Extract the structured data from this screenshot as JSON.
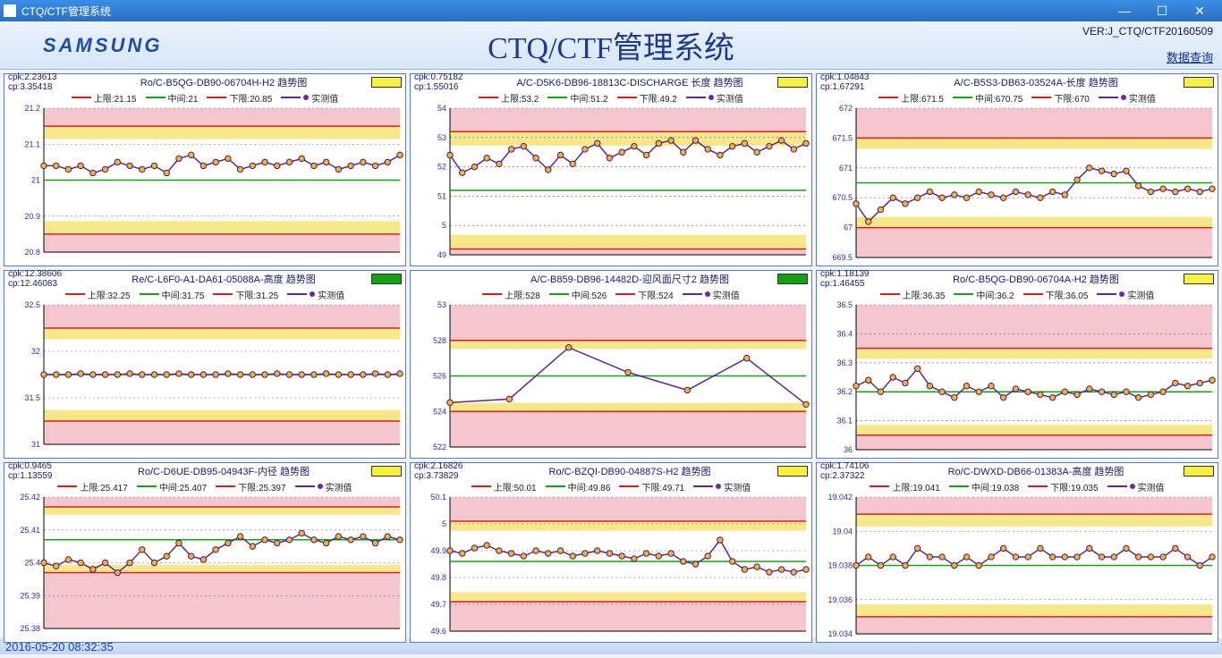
{
  "window": {
    "title": "CTQ/CTF管理系统"
  },
  "header": {
    "logo_text": "SAMSUNG",
    "main_title": "CTQ/CTF管理系统",
    "version": "VER:J_CTQ/CTF20160509",
    "query_link": "数据查询"
  },
  "footer": {
    "timestamp": "2016-05-20 08:32:35"
  },
  "legend_labels": {
    "upper": "上限:",
    "mid": "中间:",
    "lower": "下限:",
    "actual": "实测值"
  },
  "colors": {
    "upper_line": "#d62020",
    "mid_line": "#18a018",
    "lower_line": "#d62020",
    "actual_line": "#5a2a8a",
    "marker_fill": "#f0b830",
    "marker_stroke": "#4a187a",
    "band_outer": "#f6c6cf",
    "band_inner": "#f6e88a",
    "grid": "#5a5ad0",
    "axis": "#000000",
    "status_yellow": "#f8f040",
    "status_green": "#10a010",
    "panel_border": "#5a7db3"
  },
  "charts": [
    {
      "cpk": "2.23613",
      "cp": "3.35418",
      "title": "Ro/C-B5QG-DB90-06704H-H2  趋势图",
      "status": "yellow",
      "upper": 21.15,
      "mid": 21,
      "lower": 20.85,
      "ymin": 20.8,
      "ymax": 21.2,
      "ystep": 0.1,
      "values": [
        21.04,
        21.04,
        21.03,
        21.04,
        21.02,
        21.03,
        21.05,
        21.04,
        21.03,
        21.04,
        21.02,
        21.06,
        21.07,
        21.04,
        21.05,
        21.06,
        21.03,
        21.04,
        21.05,
        21.04,
        21.05,
        21.06,
        21.04,
        21.05,
        21.03,
        21.04,
        21.05,
        21.04,
        21.05,
        21.07
      ]
    },
    {
      "cpk": "0.75182",
      "cp": "1.55016",
      "title": "A/C-D5K6-DB96-18813C-DISCHARGE 长度  趋势图",
      "status": "yellow",
      "upper": 53.2,
      "mid": 51.2,
      "lower": 49.2,
      "ymin": 49,
      "ymax": 54,
      "ystep": 1,
      "values": [
        52.4,
        51.8,
        52.0,
        52.3,
        52.1,
        52.6,
        52.7,
        52.3,
        51.9,
        52.4,
        52.1,
        52.6,
        52.8,
        52.3,
        52.5,
        52.7,
        52.4,
        52.8,
        52.9,
        52.5,
        52.9,
        52.6,
        52.4,
        52.7,
        52.8,
        52.5,
        52.7,
        52.9,
        52.6,
        52.8
      ]
    },
    {
      "cpk": "1.04843",
      "cp": "1.67291",
      "title": "A/C-B5S3-DB63-03524A-长度  趋势图",
      "status": "yellow",
      "upper": 671.5,
      "mid": 670.75,
      "lower": 670,
      "ymin": 669.5,
      "ymax": 672,
      "ystep": 0.5,
      "values": [
        670.4,
        670.1,
        670.3,
        670.5,
        670.4,
        670.5,
        670.6,
        670.5,
        670.55,
        670.5,
        670.6,
        670.55,
        670.5,
        670.6,
        670.55,
        670.5,
        670.6,
        670.55,
        670.8,
        671.0,
        670.95,
        670.9,
        670.95,
        670.7,
        670.6,
        670.65,
        670.6,
        670.65,
        670.6,
        670.65
      ]
    },
    {
      "cpk": "12.38606",
      "cp": "12.46083",
      "title": "Re/C-L6F0-A1-DA61-05088A-高度  趋势图",
      "status": "green",
      "upper": 32.25,
      "mid": 31.75,
      "lower": 31.25,
      "ymin": 31,
      "ymax": 32.5,
      "ystep": 0.5,
      "values": [
        31.75,
        31.75,
        31.75,
        31.76,
        31.75,
        31.75,
        31.75,
        31.76,
        31.75,
        31.75,
        31.75,
        31.76,
        31.75,
        31.75,
        31.75,
        31.76,
        31.75,
        31.75,
        31.75,
        31.76,
        31.75,
        31.75,
        31.75,
        31.76,
        31.75,
        31.75,
        31.75,
        31.76,
        31.75,
        31.76
      ]
    },
    {
      "cpk": "",
      "cp": "",
      "title": "A/C-B859-DB96-14482D-迎风面尺寸2  趋势图",
      "status": "green",
      "upper": 528,
      "mid": 526,
      "lower": 524,
      "ymin": 522,
      "ymax": 530,
      "ystep": 2,
      "values": [
        524.5,
        524.7,
        527.6,
        526.2,
        525.2,
        527.0,
        524.4
      ]
    },
    {
      "cpk": "1.18139",
      "cp": "1.46455",
      "title": "Ro/C-B5QG-DB90-06704A-H2  趋势图",
      "status": "yellow",
      "upper": 36.35,
      "mid": 36.2,
      "lower": 36.05,
      "ymin": 36,
      "ymax": 36.5,
      "ystep": 0.1,
      "values": [
        36.22,
        36.24,
        36.2,
        36.25,
        36.23,
        36.28,
        36.22,
        36.2,
        36.18,
        36.22,
        36.2,
        36.22,
        36.18,
        36.21,
        36.2,
        36.19,
        36.18,
        36.2,
        36.19,
        36.21,
        36.2,
        36.19,
        36.2,
        36.18,
        36.19,
        36.2,
        36.23,
        36.22,
        36.23,
        36.24
      ]
    },
    {
      "cpk": "0.9465",
      "cp": "1.13559",
      "title": "Ro/C-D6UE-DB95-04943F-内径  趋势图",
      "status": "yellow",
      "upper": 25.417,
      "mid": 25.407,
      "lower": 25.397,
      "ymin": 25.38,
      "ymax": 25.42,
      "ystep": 0.01,
      "values": [
        25.4,
        25.399,
        25.401,
        25.4,
        25.398,
        25.4,
        25.397,
        25.4,
        25.404,
        25.4,
        25.402,
        25.406,
        25.402,
        25.401,
        25.404,
        25.406,
        25.408,
        25.405,
        25.407,
        25.406,
        25.407,
        25.409,
        25.407,
        25.406,
        25.408,
        25.407,
        25.408,
        25.406,
        25.408,
        25.407
      ]
    },
    {
      "cpk": "2.16826",
      "cp": "3.73829",
      "title": "Ro/C-BZQI-DB90-04887S-H2  趋势图",
      "status": "yellow",
      "upper": 50.01,
      "mid": 49.86,
      "lower": 49.71,
      "ymin": 49.6,
      "ymax": 50.1,
      "ystep": 0.1,
      "values": [
        49.9,
        49.89,
        49.91,
        49.92,
        49.9,
        49.89,
        49.88,
        49.9,
        49.89,
        49.9,
        49.88,
        49.89,
        49.9,
        49.89,
        49.88,
        49.87,
        49.89,
        49.88,
        49.89,
        49.86,
        49.85,
        49.88,
        49.94,
        49.86,
        49.83,
        49.84,
        49.82,
        49.83,
        49.82,
        49.83
      ]
    },
    {
      "cpk": "1.74106",
      "cp": "2.37322",
      "title": "Ro/C-DWXD-DB66-01383A-高度  趋势图",
      "status": "yellow",
      "upper": 19.041,
      "mid": 19.038,
      "lower": 19.035,
      "ymin": 19.034,
      "ymax": 19.042,
      "ystep": 0.002,
      "values": [
        19.038,
        19.0385,
        19.038,
        19.0385,
        19.038,
        19.039,
        19.0385,
        19.0385,
        19.038,
        19.0385,
        19.038,
        19.0385,
        19.039,
        19.0385,
        19.0385,
        19.039,
        19.0385,
        19.0385,
        19.0385,
        19.039,
        19.0385,
        19.0385,
        19.039,
        19.0385,
        19.0385,
        19.0385,
        19.039,
        19.0385,
        19.038,
        19.0385
      ]
    }
  ]
}
